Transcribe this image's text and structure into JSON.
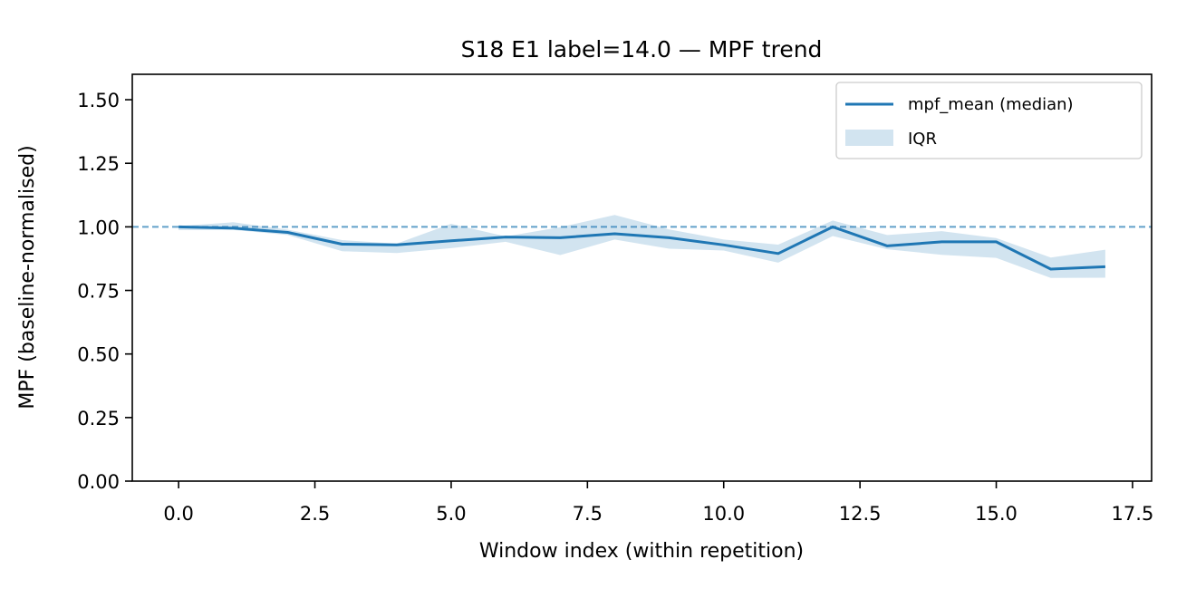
{
  "chart_data": {
    "type": "line",
    "title": "S18 E1 label=14.0 — MPF trend",
    "xlabel": "Window index (within repetition)",
    "ylabel": "MPF (baseline-normalised)",
    "xlim": [
      -0.85,
      17.85
    ],
    "ylim": [
      0.0,
      1.6
    ],
    "xticks": [
      "0.0",
      "2.5",
      "5.0",
      "7.5",
      "10.0",
      "12.5",
      "15.0",
      "17.5"
    ],
    "yticks": [
      "0.00",
      "0.25",
      "0.50",
      "0.75",
      "1.00",
      "1.25",
      "1.50"
    ],
    "x": [
      0,
      1,
      2,
      3,
      4,
      5,
      6,
      7,
      8,
      9,
      10,
      11,
      12,
      13,
      14,
      15,
      16,
      17
    ],
    "series": [
      {
        "name": "mpf_mean (median)",
        "kind": "line",
        "color": "#1f77b4",
        "values": [
          1.0,
          0.995,
          0.978,
          0.932,
          0.929,
          0.945,
          0.96,
          0.957,
          0.973,
          0.957,
          0.929,
          0.895,
          1.0,
          0.925,
          0.941,
          0.941,
          0.834,
          0.843
        ]
      },
      {
        "name": "IQR",
        "kind": "band",
        "color": "#1f77b4",
        "alpha": 0.2,
        "lower": [
          0.987,
          0.988,
          0.968,
          0.904,
          0.897,
          0.916,
          0.941,
          0.889,
          0.95,
          0.914,
          0.907,
          0.859,
          0.964,
          0.912,
          0.89,
          0.878,
          0.799,
          0.8
        ],
        "upper": [
          1.003,
          1.018,
          0.989,
          0.948,
          0.934,
          1.012,
          0.962,
          0.999,
          1.047,
          0.99,
          0.95,
          0.93,
          1.025,
          0.968,
          0.983,
          0.956,
          0.879,
          0.91
        ]
      }
    ],
    "reference_line": {
      "y": 1.0,
      "style": "dashed",
      "color": "#1f77b4"
    },
    "legend": {
      "placement": "top-right",
      "entries": [
        "mpf_mean (median)",
        "IQR"
      ]
    },
    "grid": false
  }
}
